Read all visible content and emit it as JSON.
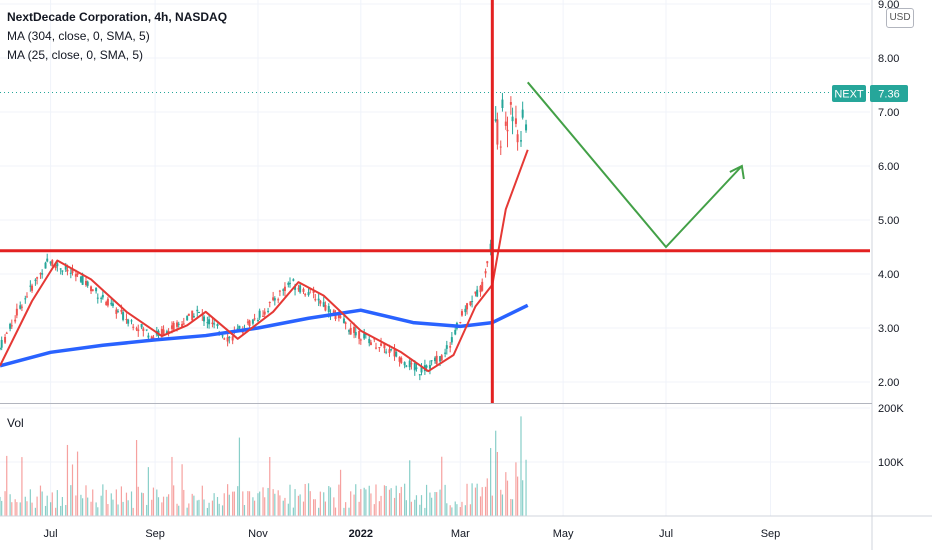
{
  "legend": {
    "title": "NextDecade Corporation, 4h, NASDAQ",
    "ma_long": "MA (304, close, 0, SMA, 5)",
    "ma_short": "MA (25, close, 0, SMA, 5)"
  },
  "currency": "USD",
  "volume_label": "Vol",
  "price_badge": {
    "symbol": "NEXT",
    "value": "7.36",
    "color": "#26a69a"
  },
  "colors": {
    "up": "#26a69a",
    "down": "#ef5350",
    "ma_short": "#e53935",
    "ma_long": "#2962ff",
    "annotation_red": "#e32121",
    "annotation_green": "#43a047",
    "grid": "#f0f3fa"
  },
  "chart_data": {
    "type": "line",
    "symbol": "NEXT",
    "timeframe": "4h",
    "x_ticks": [
      "Jul",
      "Sep",
      "Nov",
      "2022",
      "Mar",
      "May",
      "Jul",
      "Sep"
    ],
    "price_axis": {
      "min": 2.0,
      "max": 9.0,
      "ticks": [
        "2.00",
        "3.00",
        "4.00",
        "5.00",
        "6.00",
        "7.00",
        "8.00",
        "9.00"
      ]
    },
    "volume_axis": {
      "ticks": [
        "100K",
        "200K"
      ]
    },
    "grid": true,
    "last_price": 7.36,
    "series": [
      {
        "name": "MA (304, close, 0, SMA, 5)",
        "x": [
          "2021-06-01",
          "2021-07-01",
          "2021-08-01",
          "2021-09-01",
          "2021-10-01",
          "2021-11-01",
          "2021-12-01",
          "2022-01-01",
          "2022-02-01",
          "2022-03-01",
          "2022-03-20",
          "2022-04-10"
        ],
        "y": [
          2.3,
          2.55,
          2.68,
          2.78,
          2.86,
          3.0,
          3.18,
          3.33,
          3.1,
          3.03,
          3.1,
          3.42
        ]
      },
      {
        "name": "MA (25, close, 0, SMA, 5)",
        "x": [
          "2021-06-01",
          "2021-06-20",
          "2021-07-05",
          "2021-07-25",
          "2021-08-15",
          "2021-09-05",
          "2021-09-20",
          "2021-10-01",
          "2021-10-20",
          "2021-11-10",
          "2021-11-25",
          "2021-12-10",
          "2022-01-01",
          "2022-01-25",
          "2022-02-10",
          "2022-02-25",
          "2022-03-10",
          "2022-03-20",
          "2022-03-28",
          "2022-04-10"
        ],
        "y": [
          2.3,
          3.5,
          4.25,
          3.9,
          3.3,
          2.85,
          3.05,
          3.3,
          2.8,
          3.3,
          3.85,
          3.6,
          2.95,
          2.55,
          2.2,
          2.5,
          3.4,
          3.8,
          5.2,
          6.3
        ]
      }
    ],
    "annotations": {
      "horizontal_line": {
        "y": 4.43
      },
      "vertical_line": {
        "x": "2022-03-20"
      },
      "projection": {
        "x": [
          "2022-04-10",
          "2022-07-01",
          "2022-08-15"
        ],
        "y": [
          7.55,
          4.5,
          6.0
        ]
      }
    }
  }
}
